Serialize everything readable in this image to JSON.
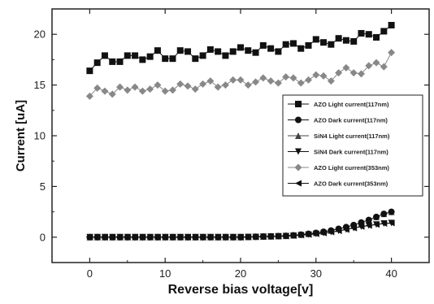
{
  "chart_data": {
    "type": "scatter",
    "xlabel": "Reverse bias voltage[v]",
    "ylabel": "Current [uA]",
    "xlim": [
      -5,
      45
    ],
    "ylim": [
      -2.5,
      22.5
    ],
    "xticks": [
      0,
      10,
      20,
      30,
      40
    ],
    "yticks": [
      0,
      5,
      10,
      15,
      20
    ],
    "x": [
      0,
      1,
      2,
      3,
      4,
      5,
      6,
      7,
      8,
      9,
      10,
      11,
      12,
      13,
      14,
      15,
      16,
      17,
      18,
      19,
      20,
      21,
      22,
      23,
      24,
      25,
      26,
      27,
      28,
      29,
      30,
      31,
      32,
      33,
      34,
      35,
      36,
      37,
      38,
      39,
      40
    ],
    "series": [
      {
        "name": "AZO Light current(117nm)",
        "marker": "square",
        "color": "#111111",
        "values": [
          16.4,
          17.2,
          17.9,
          17.3,
          17.3,
          17.9,
          17.9,
          17.5,
          17.8,
          18.4,
          17.6,
          17.6,
          18.4,
          18.3,
          17.6,
          17.9,
          18.5,
          18.3,
          17.9,
          18.3,
          18.7,
          18.4,
          18.2,
          18.9,
          18.6,
          18.3,
          19.0,
          19.1,
          18.6,
          18.9,
          19.5,
          19.2,
          19.0,
          19.6,
          19.4,
          19.3,
          20.1,
          20.0,
          19.7,
          20.3,
          20.9
        ]
      },
      {
        "name": "AZO Dark current(117nm)",
        "marker": "circle",
        "color": "#111111",
        "values": [
          0.0,
          0.0,
          0.0,
          0.0,
          0.0,
          0.0,
          0.0,
          0.0,
          0.0,
          0.0,
          0.0,
          0.0,
          0.0,
          0.0,
          0.0,
          0.0,
          0.0,
          0.0,
          0.0,
          0.0,
          0.0,
          0.02,
          0.04,
          0.06,
          0.08,
          0.1,
          0.13,
          0.18,
          0.25,
          0.33,
          0.42,
          0.53,
          0.66,
          0.83,
          1.0,
          1.2,
          1.45,
          1.7,
          2.0,
          2.3,
          2.5
        ]
      },
      {
        "name": "SiN4 Light current(117nm)",
        "marker": "triangle-up",
        "color": "#444444",
        "values": [
          0.0,
          0.0,
          0.0,
          0.0,
          0.0,
          0.0,
          0.0,
          0.0,
          0.0,
          0.0,
          0.0,
          0.0,
          0.0,
          0.0,
          0.0,
          0.0,
          0.0,
          0.0,
          0.0,
          0.0,
          0.0,
          0.02,
          0.04,
          0.06,
          0.08,
          0.1,
          0.13,
          0.18,
          0.25,
          0.33,
          0.42,
          0.53,
          0.66,
          0.83,
          1.0,
          1.2,
          1.45,
          1.7,
          2.0,
          2.3,
          2.5
        ]
      },
      {
        "name": "SiN4 Dark current(117nm)",
        "marker": "triangle-down",
        "color": "#111111",
        "values": [
          0.0,
          0.0,
          0.0,
          0.0,
          0.0,
          0.0,
          0.0,
          0.0,
          0.0,
          0.0,
          0.0,
          0.0,
          0.0,
          0.0,
          0.0,
          0.0,
          0.0,
          0.0,
          0.0,
          0.0,
          0.0,
          0.01,
          0.02,
          0.04,
          0.06,
          0.08,
          0.1,
          0.14,
          0.19,
          0.25,
          0.32,
          0.4,
          0.5,
          0.62,
          0.75,
          0.9,
          1.05,
          1.15,
          1.25,
          1.35,
          1.4
        ]
      },
      {
        "name": "AZO Light current(353nm)",
        "marker": "diamond",
        "color": "#888888",
        "values": [
          13.9,
          14.7,
          14.4,
          14.1,
          14.8,
          14.5,
          14.8,
          14.4,
          14.6,
          15.0,
          14.4,
          14.5,
          15.1,
          14.9,
          14.6,
          15.1,
          15.4,
          14.8,
          15.0,
          15.5,
          15.5,
          15.0,
          15.3,
          15.7,
          15.4,
          15.2,
          15.8,
          15.7,
          15.2,
          15.5,
          16.0,
          15.9,
          15.4,
          16.2,
          16.7,
          16.2,
          16.1,
          16.9,
          17.2,
          16.8,
          18.2
        ]
      },
      {
        "name": "AZO Dark current(353nm)",
        "marker": "triangle-left",
        "color": "#111111",
        "values": [
          0.0,
          0.0,
          0.0,
          0.0,
          0.0,
          0.0,
          0.0,
          0.0,
          0.0,
          0.0,
          0.0,
          0.0,
          0.0,
          0.0,
          0.0,
          0.0,
          0.0,
          0.0,
          0.0,
          0.0,
          0.0,
          0.01,
          0.02,
          0.04,
          0.06,
          0.08,
          0.1,
          0.14,
          0.19,
          0.25,
          0.32,
          0.4,
          0.5,
          0.62,
          0.75,
          0.9,
          1.05,
          1.15,
          1.25,
          1.35,
          1.4
        ]
      }
    ]
  }
}
